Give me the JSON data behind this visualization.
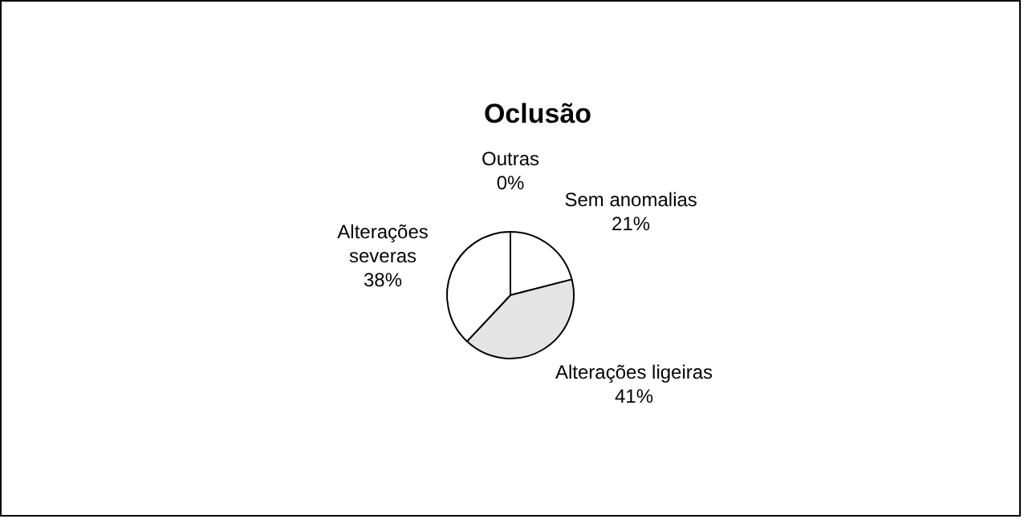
{
  "chart_data": {
    "type": "pie",
    "title": "Oclusão",
    "categories": [
      "Outras",
      "Sem anomalias",
      "Alterações ligeiras",
      "Alterações severas"
    ],
    "values": [
      0,
      21,
      41,
      38
    ],
    "colors": [
      "#ffffff",
      "#ffffff",
      "#e4e4e4",
      "#ffffff"
    ],
    "value_labels": [
      "0%",
      "21%",
      "41%",
      "38%"
    ],
    "legend": false
  }
}
